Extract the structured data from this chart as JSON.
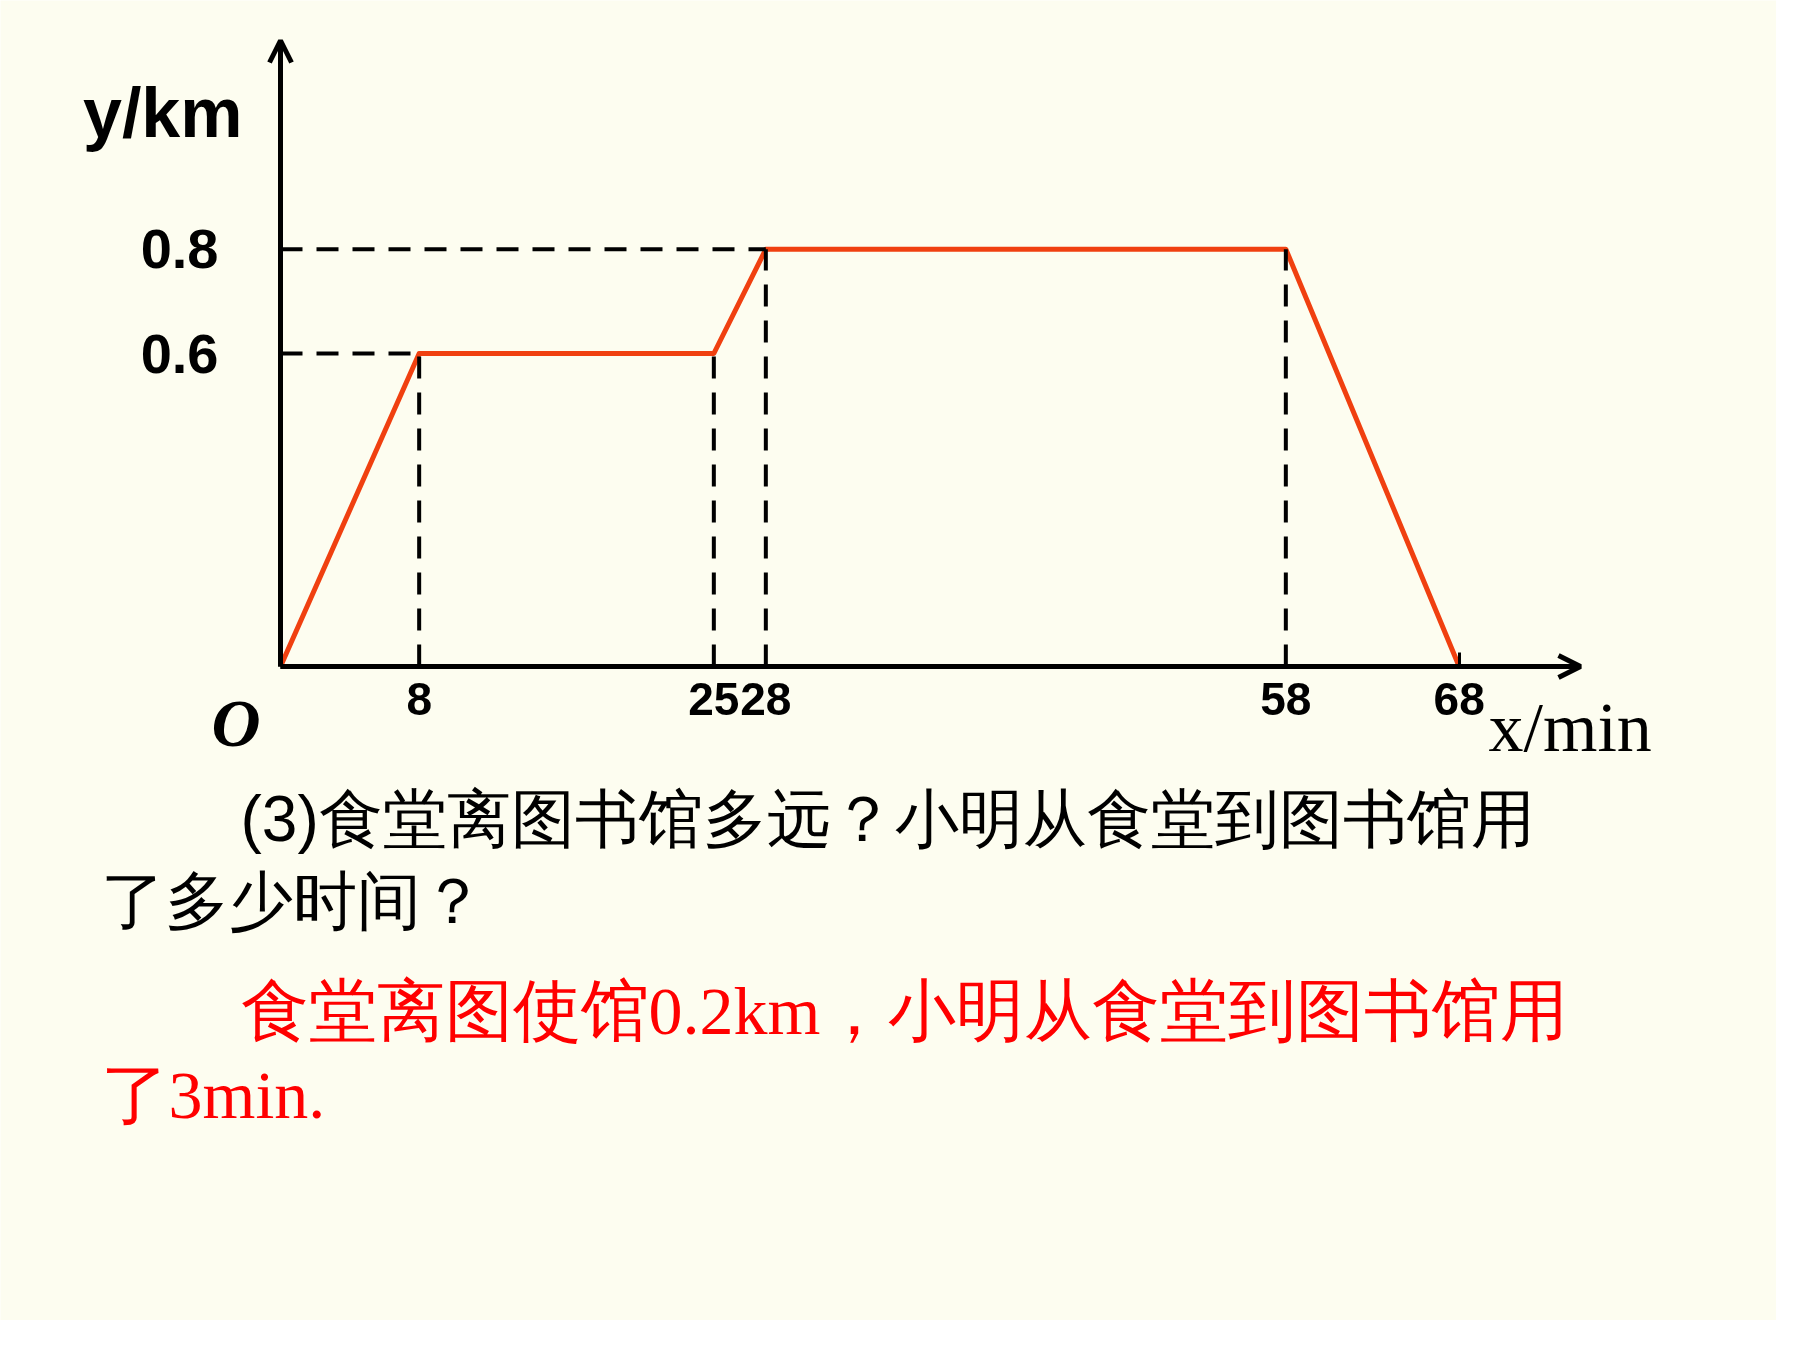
{
  "chart_data": {
    "type": "line",
    "xlabel": "x/min",
    "ylabel": "y/km",
    "x": [
      0,
      8,
      25,
      28,
      58,
      68
    ],
    "series": [
      {
        "color": "#f04010",
        "values": [
          0,
          0.6,
          0.6,
          0.8,
          0.8,
          0
        ]
      }
    ],
    "xlim": [
      0,
      75
    ],
    "ylim": [
      0,
      1.2
    ],
    "xticks": [
      8,
      25,
      28,
      58,
      68
    ],
    "yticks": [
      0.6,
      0.8
    ],
    "ref_lines": [
      {
        "axis": "x",
        "value": 8,
        "color": "#000000",
        "line_style": "dashed"
      },
      {
        "axis": "x",
        "value": 25,
        "color": "#000000",
        "line_style": "dashed"
      },
      {
        "axis": "x",
        "value": 28,
        "color": "#000000",
        "line_style": "dashed"
      },
      {
        "axis": "x",
        "value": 58,
        "color": "#000000",
        "line_style": "dashed"
      },
      {
        "axis": "y",
        "value": 0.6,
        "color": "#000000",
        "line_style": "dashed"
      },
      {
        "axis": "y",
        "value": 0.8,
        "color": "#000000",
        "line_style": "dashed"
      }
    ],
    "annotations": [
      {
        "text": "O",
        "x": 0,
        "y": 0
      },
      "(3)食堂离图书馆多远？小明从食堂到图书馆用了多少时间？",
      "食堂离图使馆0.2km，小明从食堂到图书馆用了3min."
    ]
  }
}
